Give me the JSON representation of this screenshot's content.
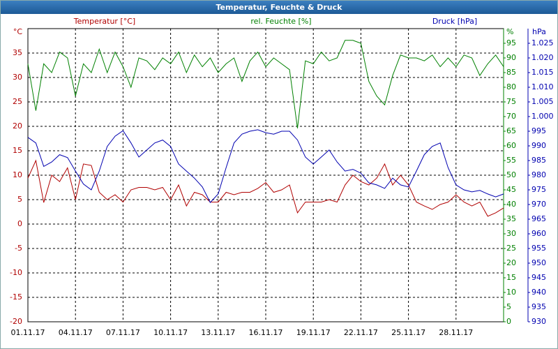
{
  "chart_data": {
    "type": "line",
    "title": "Temperatur, Feuchte & Druck",
    "x": [
      0,
      0.5,
      1,
      1.5,
      2,
      2.5,
      3,
      3.5,
      4,
      4.5,
      5,
      5.5,
      6,
      6.5,
      7,
      7.5,
      8,
      8.5,
      9,
      9.5,
      10,
      10.5,
      11,
      11.5,
      12,
      12.5,
      13,
      13.5,
      14,
      14.5,
      15,
      15.5,
      16,
      16.5,
      17,
      17.5,
      18,
      18.5,
      19,
      19.5,
      20,
      20.5,
      21,
      21.5,
      22,
      22.5,
      23,
      23.5,
      24,
      24.5,
      25,
      25.5,
      26,
      26.5,
      27,
      27.5,
      28,
      28.5,
      29,
      29.5,
      30
    ],
    "xlim": [
      0,
      30
    ],
    "xticks": [
      {
        "value": 0,
        "label": "01.11.17"
      },
      {
        "value": 3,
        "label": "04.11.17"
      },
      {
        "value": 6,
        "label": "07.11.17"
      },
      {
        "value": 9,
        "label": "10.11.17"
      },
      {
        "value": 12,
        "label": "13.11.17"
      },
      {
        "value": 15,
        "label": "16.11.17"
      },
      {
        "value": 18,
        "label": "19.11.17"
      },
      {
        "value": 21,
        "label": "22.11.17"
      },
      {
        "value": 24,
        "label": "25.11.17"
      },
      {
        "value": 27,
        "label": "28.11.17"
      }
    ],
    "grid": true,
    "ylim": [
      -20,
      40
    ],
    "y_label": "Temperatur [°C]",
    "y_unit": "°C",
    "y_color": "#b00000",
    "yticks": [
      -20,
      -15,
      -10,
      -5,
      0,
      5,
      10,
      15,
      20,
      25,
      30,
      35
    ],
    "y2lim": [
      0,
      100
    ],
    "y2_label": "rel. Feuchte [%]",
    "y2_unit": "%",
    "y2_color": "#008000",
    "y2ticks": [
      0,
      5,
      10,
      15,
      20,
      25,
      30,
      35,
      40,
      45,
      50,
      55,
      60,
      65,
      70,
      75,
      80,
      85,
      90,
      95
    ],
    "y3lim": [
      930,
      1030
    ],
    "y3_label": "Druck [hPa]",
    "y3_unit": "hPa",
    "y3_color": "#0000b0",
    "y3ticks": [
      930,
      935,
      940,
      945,
      950,
      955,
      960,
      965,
      970,
      975,
      980,
      985,
      990,
      995,
      {
        "value": 1000,
        "label": "1.000"
      },
      {
        "value": 1005,
        "label": "1.005"
      },
      {
        "value": 1010,
        "label": "1.010"
      },
      {
        "value": 1015,
        "label": "1.015"
      },
      {
        "value": 1020,
        "label": "1.020"
      },
      {
        "value": 1025,
        "label": "1.025"
      }
    ],
    "series": [
      {
        "name": "Temperatur",
        "color": "#b00000",
        "axis": "y",
        "values": [
          9.4,
          13,
          4.4,
          10,
          8.7,
          11.5,
          5,
          12.3,
          12,
          6.5,
          5,
          6,
          4.5,
          7,
          7.5,
          7.5,
          7,
          7.5,
          5,
          8,
          3.7,
          6.5,
          6,
          4.5,
          4.5,
          6.5,
          6,
          6.5,
          6.5,
          7.3,
          8.5,
          6.5,
          7,
          8,
          2.3,
          4.5,
          4.5,
          4.5,
          5,
          4.5,
          8,
          10,
          8.7,
          8,
          9.4,
          12.3,
          8,
          10,
          8,
          4.5,
          3.7,
          3,
          4,
          4.5,
          6,
          4.5,
          3.7,
          4.5,
          1.6,
          2.3,
          3.3
        ]
      },
      {
        "name": "rel. Feuchte",
        "color": "#008000",
        "axis": "y2",
        "values": [
          88,
          72,
          88,
          85,
          92,
          90,
          77,
          88,
          85,
          93,
          85,
          92,
          87,
          80,
          90,
          89,
          86,
          90,
          88,
          92,
          85,
          91,
          87,
          90,
          85,
          88,
          90,
          82,
          89,
          92,
          87,
          90,
          88,
          86,
          66,
          89,
          88,
          92,
          89,
          90,
          96,
          96,
          95,
          82,
          77,
          74,
          84,
          91,
          90,
          90,
          89,
          91,
          87,
          90,
          87,
          91,
          90,
          84,
          88,
          91,
          87
        ]
      },
      {
        "name": "Druck",
        "color": "#0000b0",
        "axis": "y3",
        "values": [
          992.9,
          991,
          983,
          984.5,
          987,
          986,
          981.4,
          977,
          975,
          981.4,
          989.8,
          993.3,
          995.2,
          991,
          986.2,
          988.6,
          991,
          992,
          989.8,
          983.8,
          981.4,
          979,
          976,
          970.7,
          973.6,
          982.6,
          991,
          994,
          995,
          995.5,
          994.5,
          994,
          995,
          995,
          992,
          986.2,
          983.8,
          986.2,
          988.6,
          984.5,
          981.4,
          982,
          980.7,
          977.4,
          976.7,
          975.5,
          979,
          976.7,
          976,
          981.4,
          987,
          989.8,
          991,
          982.6,
          976.7,
          975,
          974.3,
          974.8,
          973.6,
          972.6,
          973.6
        ]
      }
    ]
  }
}
